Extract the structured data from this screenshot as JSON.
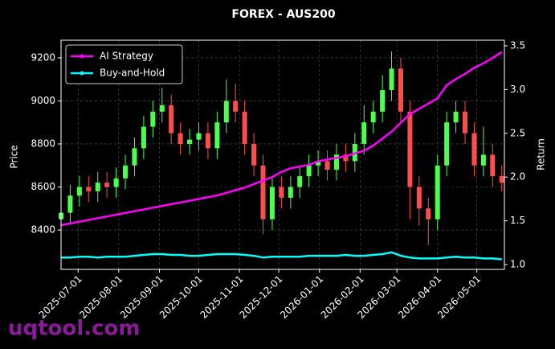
{
  "chart_data": {
    "type": "candlestick",
    "title": "FOREX - AUS200",
    "ylabel": "Price",
    "y2label": "Return",
    "watermark": "uqtool.com",
    "x": [
      "2025-06-18",
      "2025-06-25",
      "2025-07-02",
      "2025-07-09",
      "2025-07-16",
      "2025-07-23",
      "2025-07-30",
      "2025-08-06",
      "2025-08-13",
      "2025-08-20",
      "2025-08-27",
      "2025-09-03",
      "2025-09-10",
      "2025-09-17",
      "2025-09-24",
      "2025-10-01",
      "2025-10-08",
      "2025-10-15",
      "2025-10-22",
      "2025-10-29",
      "2025-11-05",
      "2025-11-12",
      "2025-11-19",
      "2025-11-26",
      "2025-12-03",
      "2025-12-10",
      "2025-12-17",
      "2025-12-24",
      "2025-12-31",
      "2026-01-07",
      "2026-01-14",
      "2026-01-21",
      "2026-01-28",
      "2026-02-04",
      "2026-02-11",
      "2026-02-18",
      "2026-02-25",
      "2026-03-04",
      "2026-03-11",
      "2026-03-18",
      "2026-03-25",
      "2026-04-01",
      "2026-04-08",
      "2026-04-15",
      "2026-04-22",
      "2026-04-29",
      "2026-05-06",
      "2026-05-13",
      "2026-05-20"
    ],
    "open": [
      8450,
      8480,
      8560,
      8600,
      8580,
      8620,
      8600,
      8640,
      8700,
      8780,
      8880,
      8950,
      8980,
      8850,
      8800,
      8820,
      8850,
      8780,
      8900,
      9000,
      8950,
      8800,
      8700,
      8450,
      8600,
      8550,
      8600,
      8650,
      8700,
      8720,
      8680,
      8750,
      8720,
      8800,
      8900,
      8950,
      9050,
      9150,
      8950,
      8600,
      8500,
      8450,
      8700,
      8900,
      8950,
      8850,
      8700,
      8750,
      8650
    ],
    "high": [
      8530,
      8610,
      8650,
      8650,
      8670,
      8670,
      8690,
      8750,
      8830,
      8930,
      9000,
      9060,
      9030,
      8900,
      8870,
      8900,
      8900,
      8950,
      9100,
      9080,
      9000,
      8850,
      8750,
      8650,
      8650,
      8650,
      8700,
      8750,
      8770,
      8770,
      8800,
      8800,
      8850,
      8980,
      9000,
      9120,
      9230,
      9200,
      9000,
      8650,
      8550,
      8750,
      8950,
      9000,
      9000,
      8900,
      8880,
      8800,
      8700
    ],
    "low": [
      8400,
      8430,
      8510,
      8530,
      8530,
      8550,
      8550,
      8590,
      8650,
      8730,
      8830,
      8900,
      8800,
      8750,
      8750,
      8770,
      8730,
      8730,
      8850,
      8900,
      8750,
      8650,
      8380,
      8400,
      8500,
      8500,
      8550,
      8600,
      8650,
      8630,
      8630,
      8670,
      8670,
      8750,
      8850,
      8900,
      9000,
      8900,
      8450,
      8420,
      8330,
      8400,
      8650,
      8850,
      8800,
      8650,
      8650,
      8600,
      8580
    ],
    "close": [
      8480,
      8560,
      8600,
      8580,
      8620,
      8600,
      8640,
      8700,
      8780,
      8880,
      8950,
      8980,
      8850,
      8800,
      8820,
      8850,
      8780,
      8900,
      9000,
      8950,
      8800,
      8700,
      8450,
      8600,
      8550,
      8600,
      8650,
      8700,
      8720,
      8680,
      8750,
      8720,
      8800,
      8900,
      8950,
      9050,
      9150,
      8950,
      8600,
      8500,
      8450,
      8700,
      8900,
      8950,
      8850,
      8700,
      8750,
      8650,
      8620
    ],
    "up_color": "#4cff4c",
    "down_color": "#ff4c4c",
    "series": [
      {
        "name": "AI Strategy",
        "color": "#ff00ff",
        "axis": "y2",
        "values": [
          1.45,
          1.47,
          1.49,
          1.51,
          1.53,
          1.55,
          1.57,
          1.59,
          1.61,
          1.63,
          1.65,
          1.67,
          1.69,
          1.71,
          1.73,
          1.75,
          1.77,
          1.79,
          1.82,
          1.85,
          1.88,
          1.92,
          1.96,
          2.0,
          2.06,
          2.1,
          2.12,
          2.14,
          2.18,
          2.2,
          2.22,
          2.24,
          2.27,
          2.3,
          2.36,
          2.44,
          2.52,
          2.62,
          2.72,
          2.78,
          2.84,
          2.9,
          3.05,
          3.12,
          3.18,
          3.25,
          3.3,
          3.36,
          3.43
        ]
      },
      {
        "name": "Buy-and-Hold",
        "color": "#00ffff",
        "axis": "y2",
        "values": [
          1.08,
          1.08,
          1.09,
          1.09,
          1.08,
          1.09,
          1.09,
          1.09,
          1.1,
          1.11,
          1.12,
          1.12,
          1.11,
          1.11,
          1.1,
          1.1,
          1.11,
          1.12,
          1.12,
          1.12,
          1.11,
          1.1,
          1.08,
          1.09,
          1.09,
          1.09,
          1.09,
          1.1,
          1.1,
          1.1,
          1.1,
          1.11,
          1.1,
          1.1,
          1.11,
          1.12,
          1.14,
          1.1,
          1.08,
          1.07,
          1.07,
          1.07,
          1.08,
          1.09,
          1.08,
          1.08,
          1.07,
          1.07,
          1.06
        ]
      }
    ],
    "xlim": [
      "2025-06-18",
      "2026-05-22"
    ],
    "xticks": [
      "2025-07-01",
      "2025-08-01",
      "2025-09-01",
      "2025-10-01",
      "2025-11-01",
      "2025-12-01",
      "2026-01-01",
      "2026-02-01",
      "2026-03-01",
      "2026-04-01",
      "2026-05-01"
    ],
    "ylim": [
      8217,
      9282
    ],
    "yticks": [
      8400,
      8600,
      8800,
      9000,
      9200
    ],
    "y2lim": [
      0.945,
      3.564
    ],
    "y2ticks": [
      {
        "value": 1,
        "label": "1.0"
      },
      1.5,
      {
        "value": 2,
        "label": "2.0"
      },
      2.5,
      {
        "value": 3,
        "label": "3.0"
      },
      3.5
    ],
    "grid": true,
    "legend": "upper left"
  }
}
